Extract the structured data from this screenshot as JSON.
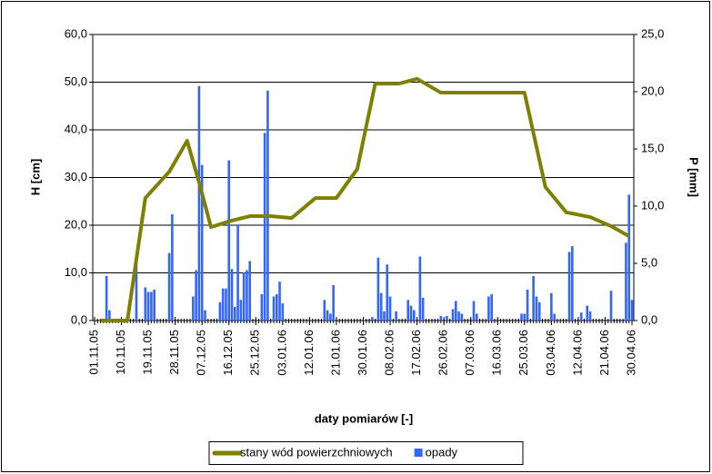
{
  "chart_data": {
    "type": "combo",
    "x_label": "daty pomiarów [-]",
    "y_label": "H [cm]",
    "y2_label": "P [mm]",
    "xlim": [
      "01.11.05",
      "30.04.06"
    ],
    "xticks": [
      "01.11.05",
      "10.11.05",
      "19.11.05",
      "28.11.05",
      "07.12.05",
      "16.12.05",
      "25.12.05",
      "03.01.06",
      "12.01.06",
      "21.01.06",
      "30.01.06",
      "08.02.06",
      "17.02.06",
      "26.02.06",
      "07.03.06",
      "16.03.06",
      "25.03.06",
      "03.04.06",
      "12.04.06",
      "21.04.06",
      "30.04.06"
    ],
    "ylim": [
      0,
      60
    ],
    "yticks": [
      {
        "value": 0,
        "label": "0,0"
      },
      {
        "value": 10,
        "label": "10,0"
      },
      {
        "value": 20,
        "label": "20,0"
      },
      {
        "value": 30,
        "label": "30,0"
      },
      {
        "value": 40,
        "label": "40,0"
      },
      {
        "value": 50,
        "label": "50,0"
      },
      {
        "value": 60,
        "label": "60,0"
      }
    ],
    "y2lim": [
      0,
      25
    ],
    "y2ticks": [
      {
        "value": 0,
        "label": "0,0"
      },
      {
        "value": 5,
        "label": "5,0"
      },
      {
        "value": 10,
        "label": "10,0"
      },
      {
        "value": 15,
        "label": "15,0"
      },
      {
        "value": 20,
        "label": "20,0"
      },
      {
        "value": 25,
        "label": "25,0"
      }
    ],
    "grid": true,
    "legend": "bottom",
    "series": [
      {
        "name": "stany wód powierzchniowych",
        "type": "line",
        "color": "#808000",
        "x": [
          "03.11.05",
          "07.11.05",
          "12.11.05",
          "18.11.05",
          "26.11.05",
          "02.12.05",
          "06.12.05",
          "10.12.05",
          "16.12.05",
          "23.12.05",
          "30.12.05",
          "06.01.06",
          "14.01.06",
          "21.01.06",
          "28.01.06",
          "03.02.06",
          "11.02.06",
          "17.02.06",
          "25.02.06",
          "04.03.06",
          "11.03.06",
          "18.03.06",
          "25.03.06",
          "01.04.06",
          "08.04.06",
          "16.04.06",
          "23.04.06",
          "29.04.06"
        ],
        "values": [
          0,
          0,
          0,
          25.7,
          31.2,
          37.7,
          29,
          19.6,
          20.8,
          21.9,
          21.9,
          21.5,
          25.7,
          25.7,
          31.8,
          49.7,
          49.7,
          50.7,
          47.8,
          47.8,
          47.8,
          47.8,
          47.8,
          28,
          22.7,
          21.7,
          19.8,
          17.7
        ]
      },
      {
        "name": "opady",
        "type": "bar",
        "color": "#3366ff",
        "axis": "y2",
        "x": [
          "05.11.05",
          "06.11.05",
          "15.11.05",
          "18.11.05",
          "19.11.05",
          "20.11.05",
          "21.11.05",
          "26.11.05",
          "27.11.05",
          "04.12.05",
          "05.12.05",
          "06.12.05",
          "07.12.05",
          "08.12.05",
          "13.12.05",
          "14.12.05",
          "15.12.05",
          "16.12.05",
          "17.12.05",
          "18.12.05",
          "19.12.05",
          "20.12.05",
          "21.12.05",
          "22.12.05",
          "23.12.05",
          "27.12.05",
          "28.12.05",
          "29.12.05",
          "31.12.05",
          "01.01.06",
          "02.01.06",
          "03.01.06",
          "17.01.06",
          "18.01.06",
          "19.01.06",
          "20.01.06",
          "02.02.06",
          "04.02.06",
          "05.02.06",
          "06.02.06",
          "07.02.06",
          "08.02.06",
          "10.02.06",
          "14.02.06",
          "15.02.06",
          "16.02.06",
          "18.02.06",
          "19.02.06",
          "25.02.06",
          "27.02.06",
          "01.03.06",
          "02.03.06",
          "03.03.06",
          "04.03.06",
          "08.03.06",
          "09.03.06",
          "13.03.06",
          "14.03.06",
          "24.03.06",
          "25.03.06",
          "26.03.06",
          "28.03.06",
          "29.03.06",
          "30.03.06",
          "03.04.06",
          "04.04.06",
          "09.04.06",
          "10.04.06",
          "13.04.06",
          "15.04.06",
          "16.04.06",
          "23.04.06",
          "28.04.06",
          "29.04.06",
          "30.04.06"
        ],
        "values": [
          3.9,
          0.9,
          5.6,
          2.9,
          2.5,
          2.5,
          2.7,
          5.9,
          9.3,
          2.1,
          4.4,
          20.5,
          13.6,
          0.9,
          1.6,
          2.8,
          2.8,
          14,
          4.5,
          1.2,
          8.4,
          1.8,
          4.2,
          4.4,
          5.2,
          2.3,
          16.4,
          20.1,
          2.1,
          2.3,
          3.4,
          1.5,
          1.8,
          0.9,
          0.6,
          3.1,
          0.3,
          5.5,
          2.4,
          0.8,
          4.9,
          2.1,
          0.8,
          1.8,
          1.3,
          0.9,
          5.6,
          2,
          0.4,
          0.4,
          1,
          1.7,
          0.8,
          0.6,
          1.7,
          0.6,
          2.1,
          2.3,
          0.6,
          0.6,
          2.7,
          3.9,
          2.1,
          1.6,
          2.4,
          0.6,
          6,
          6.5,
          0.7,
          1.3,
          0.8,
          2.6,
          6.8,
          11,
          1.8
        ]
      }
    ]
  }
}
